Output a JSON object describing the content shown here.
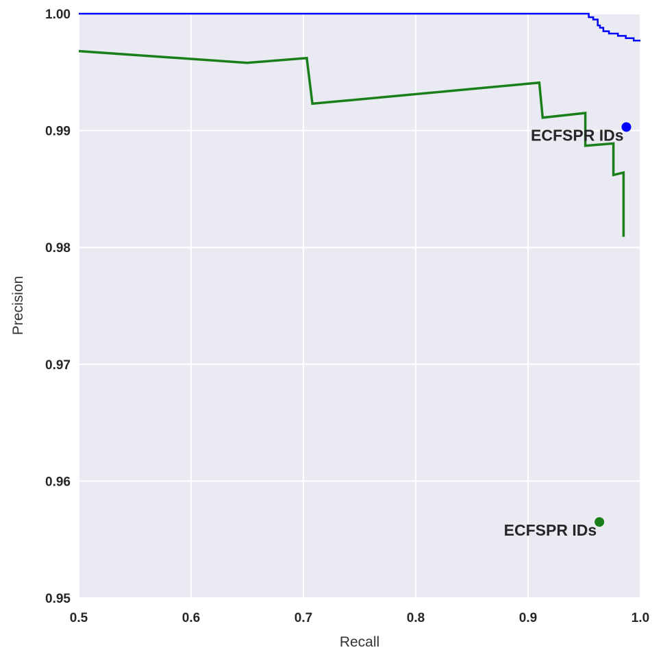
{
  "chart_data": {
    "type": "line",
    "title": "",
    "xlabel": "Recall",
    "ylabel": "Precision",
    "xlim": [
      0.5,
      1.0
    ],
    "ylim": [
      0.95,
      1.0
    ],
    "xticks": [
      {
        "value": 0.5,
        "label": "0.5"
      },
      {
        "value": 0.6,
        "label": "0.6"
      },
      {
        "value": 0.7,
        "label": "0.7"
      },
      {
        "value": 0.8,
        "label": "0.8"
      },
      {
        "value": 0.9,
        "label": "0.9"
      },
      {
        "value": 1.0,
        "label": "1.0"
      }
    ],
    "yticks": [
      {
        "value": 0.95,
        "label": "0.95"
      },
      {
        "value": 0.96,
        "label": "0.96"
      },
      {
        "value": 0.97,
        "label": "0.97"
      },
      {
        "value": 0.98,
        "label": "0.98"
      },
      {
        "value": 0.99,
        "label": "0.99"
      },
      {
        "value": 1.0,
        "label": "1.00"
      }
    ],
    "grid": true,
    "background": "#eaeaf2",
    "series": [
      {
        "color": "#0000ff",
        "x": [
          0.5,
          0.954,
          0.954,
          0.958,
          0.958,
          0.962,
          0.962,
          0.964,
          0.964,
          0.967,
          0.967,
          0.972,
          0.972,
          0.98,
          0.98,
          0.987,
          0.987,
          0.994,
          0.994,
          1.0
        ],
        "y": [
          1.0,
          1.0,
          0.9997,
          0.9997,
          0.9995,
          0.9995,
          0.999,
          0.999,
          0.9988,
          0.9988,
          0.9985,
          0.9985,
          0.9983,
          0.9983,
          0.9981,
          0.9981,
          0.9979,
          0.9979,
          0.9977,
          0.9977
        ]
      },
      {
        "color": "#1a7f1a",
        "x": [
          0.5,
          0.65,
          0.703,
          0.708,
          0.91,
          0.913,
          0.951,
          0.951,
          0.976,
          0.976,
          0.985,
          0.985
        ],
        "y": [
          0.9968,
          0.9958,
          0.9962,
          0.9923,
          0.9941,
          0.9911,
          0.9915,
          0.9887,
          0.9889,
          0.9862,
          0.9864,
          0.9809
        ]
      }
    ],
    "points": [
      {
        "x": 0.9875,
        "y": 0.9903,
        "color": "#0000ff",
        "label": "ECFSPR IDs"
      },
      {
        "x": 0.9635,
        "y": 0.9565,
        "color": "#1a7f1a",
        "label": "ECFSPR IDs"
      }
    ]
  }
}
